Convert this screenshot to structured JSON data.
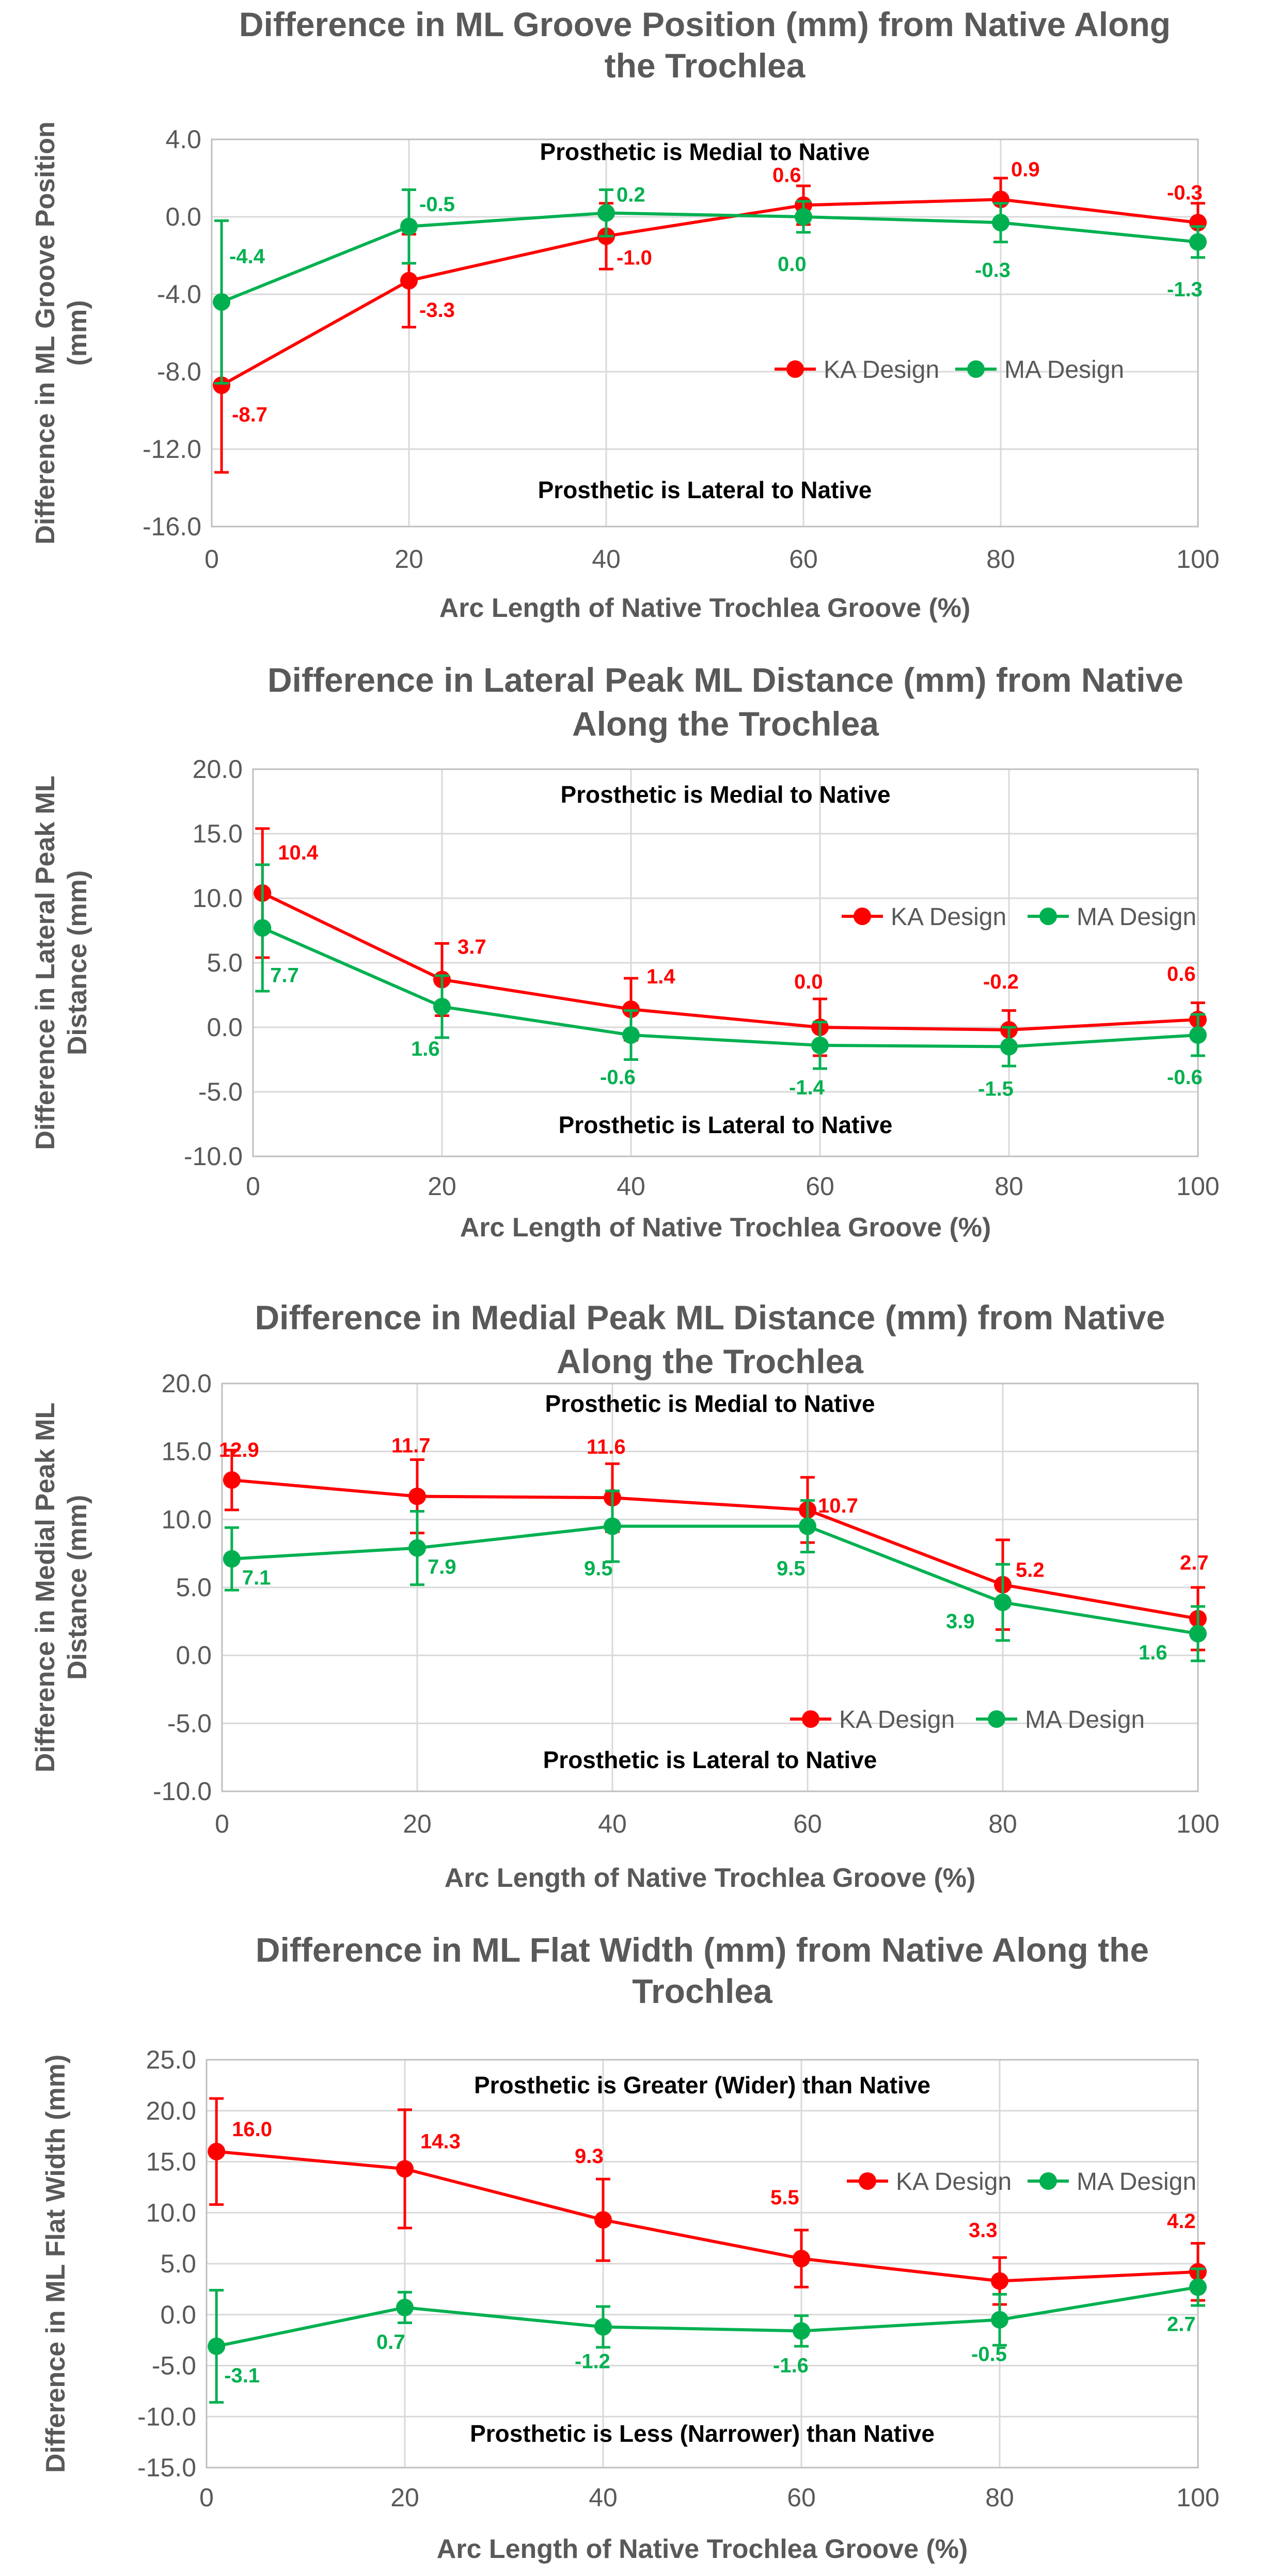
{
  "colors": {
    "ka": "#FF0000",
    "ma": "#00B050",
    "grid": "#D9D9D9",
    "axis": "#BFBFBF",
    "text": "#595959"
  },
  "chart_data": [
    {
      "type": "line",
      "title_lines": [
        "Difference in ML Groove Position (mm) from Native Along",
        "the Trochlea"
      ],
      "xlabel": "Arc Length of Native Trochlea Groove (%)",
      "ylabel_lines": [
        "Difference in ML Groove Position",
        "(mm)"
      ],
      "x": [
        1,
        20,
        40,
        60,
        80,
        100
      ],
      "xlim": [
        0,
        100
      ],
      "ylim": [
        -16,
        4
      ],
      "xticks": [
        0,
        20,
        40,
        60,
        80,
        100
      ],
      "xtick_labels": [
        "0",
        "20",
        "40",
        "60",
        "80",
        "100"
      ],
      "yticks": [
        4,
        0,
        -4,
        -8,
        -12,
        -16
      ],
      "ytick_labels": [
        "4.0",
        "0.0",
        "-4.0",
        "-8.0",
        "-12.0",
        "-16.0"
      ],
      "annotation_top": "Prosthetic is Medial to Native",
      "annotation_bottom": "Prosthetic is Lateral to Native",
      "legend_position": "right",
      "series": [
        {
          "name": "KA Design",
          "values": [
            -8.7,
            -3.3,
            -1.0,
            0.6,
            0.9,
            -0.3
          ],
          "errors": [
            4.5,
            2.4,
            1.7,
            1.0,
            1.1,
            1.0
          ],
          "value_labels": [
            "-8.7",
            "-3.3",
            "-1.0",
            "0.6",
            "0.9",
            "-0.3"
          ]
        },
        {
          "name": "MA Design",
          "values": [
            -4.4,
            -0.5,
            0.2,
            0.0,
            -0.3,
            -1.3
          ],
          "errors": [
            4.2,
            1.9,
            1.2,
            0.8,
            1.0,
            0.8
          ],
          "value_labels": [
            "-4.4",
            "-0.5",
            "0.2",
            "0.0",
            "-0.3",
            "-1.3"
          ]
        }
      ]
    },
    {
      "type": "line",
      "title_lines": [
        "Difference in Lateral Peak ML Distance (mm) from Native",
        "Along the Trochlea"
      ],
      "xlabel": "Arc Length of Native Trochlea Groove (%)",
      "ylabel_lines": [
        "Difference in Lateral Peak ML",
        "Distance (mm)"
      ],
      "x": [
        1,
        20,
        40,
        60,
        80,
        100
      ],
      "xlim": [
        0,
        100
      ],
      "ylim": [
        -10,
        20
      ],
      "xticks": [
        0,
        20,
        40,
        60,
        80,
        100
      ],
      "xtick_labels": [
        "0",
        "20",
        "40",
        "60",
        "80",
        "100"
      ],
      "yticks": [
        20,
        15,
        10,
        5,
        0,
        -5,
        -10
      ],
      "ytick_labels": [
        "20.0",
        "15.0",
        "10.0",
        "5.0",
        "0.0",
        "-5.0",
        "-10.0"
      ],
      "annotation_top": "Prosthetic is Medial to Native",
      "annotation_bottom": "Prosthetic is Lateral to Native",
      "legend_position": "top-right",
      "series": [
        {
          "name": "KA Design",
          "values": [
            10.4,
            3.7,
            1.4,
            0.0,
            -0.2,
            0.6
          ],
          "errors": [
            5.0,
            2.8,
            2.4,
            2.2,
            1.5,
            1.3
          ],
          "value_labels": [
            "10.4",
            "3.7",
            "1.4",
            "0.0",
            "-0.2",
            "0.6"
          ]
        },
        {
          "name": "MA Design",
          "values": [
            7.7,
            1.6,
            -0.6,
            -1.4,
            -1.5,
            -0.6
          ],
          "errors": [
            4.9,
            2.4,
            1.9,
            1.8,
            1.5,
            1.6
          ],
          "value_labels": [
            "7.7",
            "1.6",
            "-0.6",
            "-1.4",
            "-1.5",
            "-0.6"
          ]
        }
      ]
    },
    {
      "type": "line",
      "title_lines": [
        "Difference in Medial Peak ML Distance (mm) from Native",
        "Along the Trochlea"
      ],
      "xlabel": "Arc Length of Native Trochlea Groove (%)",
      "ylabel_lines": [
        "Difference in Medial Peak ML",
        "Distance (mm)"
      ],
      "x": [
        1,
        20,
        40,
        60,
        80,
        100
      ],
      "xlim": [
        0,
        100
      ],
      "ylim": [
        -10,
        20
      ],
      "xticks": [
        0,
        20,
        40,
        60,
        80,
        100
      ],
      "xtick_labels": [
        "0",
        "20",
        "40",
        "60",
        "80",
        "100"
      ],
      "yticks": [
        20,
        15,
        10,
        5,
        0,
        -5,
        -10
      ],
      "ytick_labels": [
        "20.0",
        "15.0",
        "10.0",
        "5.0",
        "0.0",
        "-5.0",
        "-10.0"
      ],
      "annotation_top": "Prosthetic is Medial to Native",
      "annotation_bottom": "Prosthetic is Lateral to Native",
      "legend_position": "bottom-right",
      "series": [
        {
          "name": "KA Design",
          "values": [
            12.9,
            11.7,
            11.6,
            10.7,
            5.2,
            2.7
          ],
          "errors": [
            2.2,
            2.7,
            2.5,
            2.4,
            3.3,
            2.3
          ],
          "value_labels": [
            "12.9",
            "11.7",
            "11.6",
            "10.7",
            "5.2",
            "2.7"
          ]
        },
        {
          "name": "MA Design",
          "values": [
            7.1,
            7.9,
            9.5,
            9.5,
            3.9,
            1.6
          ],
          "errors": [
            2.3,
            2.7,
            2.6,
            1.9,
            2.8,
            2.0
          ],
          "value_labels": [
            "7.1",
            "7.9",
            "9.5",
            "9.5",
            "3.9",
            "1.6"
          ]
        }
      ]
    },
    {
      "type": "line",
      "title_lines": [
        "Difference in ML Flat Width (mm) from Native Along the",
        "Trochlea"
      ],
      "xlabel": "Arc Length of Native Trochlea Groove (%)",
      "ylabel_lines": [
        "Difference in ML Flat Width (mm)"
      ],
      "x": [
        1,
        20,
        40,
        60,
        80,
        100
      ],
      "xlim": [
        0,
        100
      ],
      "ylim": [
        -15,
        25
      ],
      "xticks": [
        0,
        20,
        40,
        60,
        80,
        100
      ],
      "xtick_labels": [
        "0",
        "20",
        "40",
        "60",
        "80",
        "100"
      ],
      "yticks": [
        25,
        20,
        15,
        10,
        5,
        0,
        -5,
        -10,
        -15
      ],
      "ytick_labels": [
        "25.0",
        "20.0",
        "15.0",
        "10.0",
        "5.0",
        "0.0",
        "-5.0",
        "-10.0",
        "-15.0"
      ],
      "annotation_top": "Prosthetic is Greater (Wider) than Native",
      "annotation_bottom": "Prosthetic is Less (Narrower) than Native",
      "legend_position": "top-right",
      "series": [
        {
          "name": "KA Design",
          "values": [
            16.0,
            14.3,
            9.3,
            5.5,
            3.3,
            4.2
          ],
          "errors": [
            5.2,
            5.8,
            4.0,
            2.8,
            2.3,
            2.8
          ],
          "value_labels": [
            "16.0",
            "14.3",
            "9.3",
            "5.5",
            "3.3",
            "4.2"
          ]
        },
        {
          "name": "MA Design",
          "values": [
            -3.1,
            0.7,
            -1.2,
            -1.6,
            -0.5,
            2.7
          ],
          "errors": [
            5.5,
            1.5,
            2.0,
            1.5,
            2.5,
            1.8
          ],
          "value_labels": [
            "-3.1",
            "0.7",
            "-1.2",
            "-1.6",
            "-0.5",
            "2.7"
          ]
        }
      ]
    }
  ]
}
